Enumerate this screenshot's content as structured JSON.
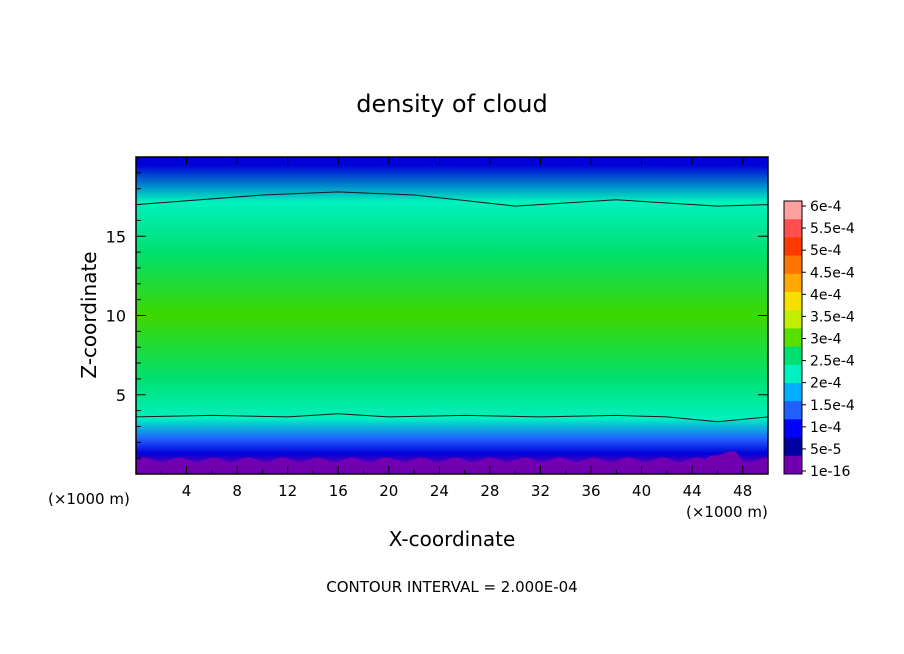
{
  "chart_data": {
    "type": "heatmap",
    "title": "density of cloud",
    "xlabel": "X-coordinate",
    "ylabel": "Z-coordinate",
    "x_unit_label": "(×1000 m)",
    "y_unit_label": "(×1000 m)",
    "xlim": [
      0,
      50
    ],
    "ylim": [
      0,
      20
    ],
    "x_ticks": [
      "4",
      "8",
      "12",
      "16",
      "20",
      "24",
      "28",
      "32",
      "36",
      "40",
      "44",
      "48"
    ],
    "y_ticks": [
      "5",
      "10",
      "15"
    ],
    "footer": "CONTOUR INTERVAL = 2.000E-04",
    "colorbar": {
      "labels": [
        "6e-4",
        "5.5e-4",
        "5e-4",
        "4.5e-4",
        "4e-4",
        "3.5e-4",
        "3e-4",
        "2.5e-4",
        "2e-4",
        "1.5e-4",
        "1e-4",
        "5e-5",
        "1e-16"
      ],
      "colors": [
        "#ffa0a0",
        "#ff5050",
        "#ff3a00",
        "#ff7400",
        "#ffa800",
        "#f5e000",
        "#c0f000",
        "#55e000",
        "#00e070",
        "#00f0c0",
        "#00b0ff",
        "#2060ff",
        "#0000ff",
        "#0000a0",
        "#7000b0"
      ]
    },
    "vertical_profile": [
      {
        "z": 0.5,
        "value": 1e-16
      },
      {
        "z": 1.3,
        "value": 5e-05
      },
      {
        "z": 2.2,
        "value": 0.0001
      },
      {
        "z": 3.5,
        "value": 0.0002
      },
      {
        "z": 6.0,
        "value": 0.00025
      },
      {
        "z": 10.0,
        "value": 0.0003
      },
      {
        "z": 14.0,
        "value": 0.00028
      },
      {
        "z": 17.2,
        "value": 0.0002
      },
      {
        "z": 19.5,
        "value": 5e-05
      }
    ],
    "contour_lines": [
      {
        "value": 0.0002,
        "x": [
          0,
          10,
          16,
          22,
          30,
          38,
          46,
          50
        ],
        "z": [
          17.0,
          17.6,
          17.8,
          17.6,
          16.9,
          17.3,
          16.9,
          17.0
        ]
      },
      {
        "value": 0.0002,
        "x": [
          0,
          6,
          12,
          16,
          20,
          26,
          32,
          38,
          42,
          46,
          50
        ],
        "z": [
          3.6,
          3.7,
          3.6,
          3.8,
          3.6,
          3.7,
          3.6,
          3.7,
          3.6,
          3.3,
          3.6
        ]
      }
    ]
  }
}
